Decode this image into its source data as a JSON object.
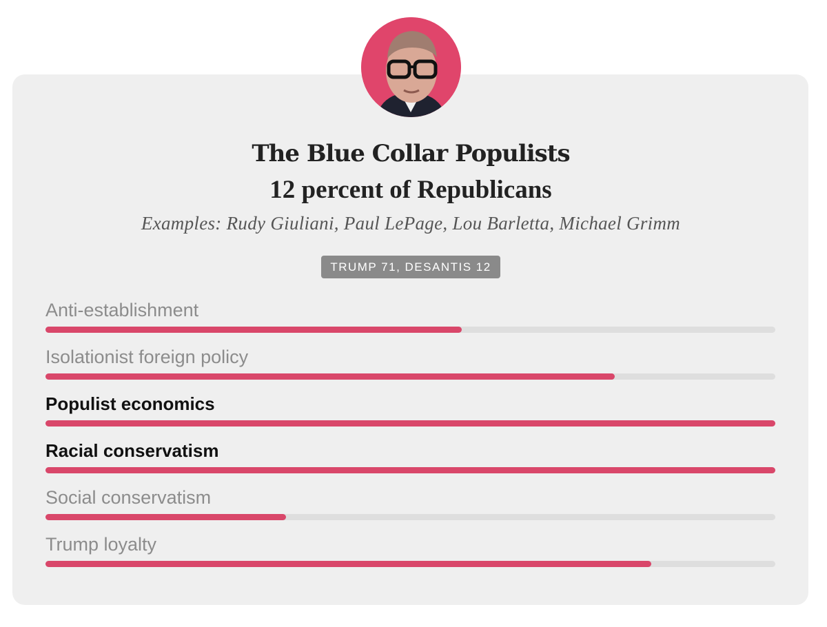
{
  "colors": {
    "accent": "#d9476a",
    "avatar_bg": "#e0456b",
    "card_bg": "#efefef",
    "track": "#dedede",
    "badge_bg": "#8a8a8a"
  },
  "avatar": {
    "icon": "portrait-photo"
  },
  "chart_data": {
    "type": "bar",
    "orientation": "horizontal",
    "title": "The Blue Collar Populists",
    "subtitle": "12 percent of Republicans",
    "examples": "Examples: Rudy Giuliani, Paul LePage, Lou Barletta, Michael Grimm",
    "badge": "TRUMP 71, DESANTIS 12",
    "xlim": [
      0,
      100
    ],
    "grid": false,
    "categories": [
      "Anti-establishment",
      "Isolationist foreign policy",
      "Populist economics",
      "Racial conservatism",
      "Social conservatism",
      "Trump loyalty"
    ],
    "values": [
      57,
      78,
      100,
      100,
      33,
      83
    ],
    "emphasized": [
      false,
      false,
      true,
      true,
      false,
      false
    ]
  }
}
